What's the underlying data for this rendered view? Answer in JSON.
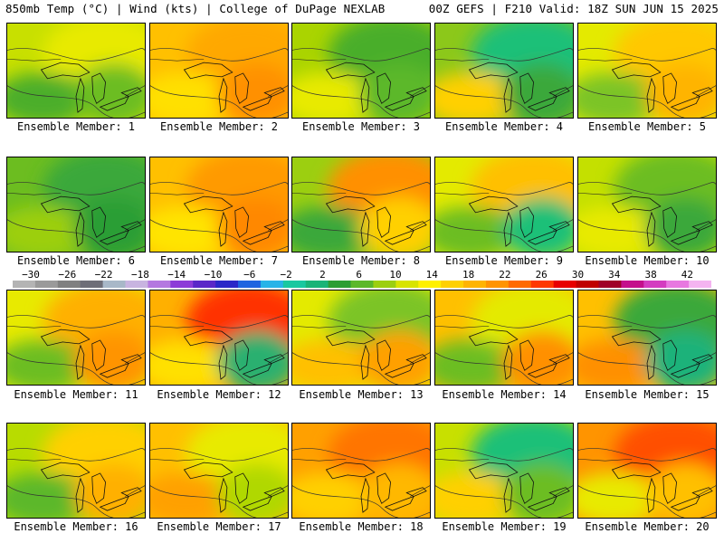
{
  "header": {
    "left": "850mb Temp (°C) | Wind (kts) | College of DuPage NEXLAB",
    "right": "00Z GEFS | F210 Valid: 18Z SUN JUN 15 2025"
  },
  "members": [
    {
      "label": "Ensemble Member: 1",
      "base": "#c8e000",
      "blobs": [
        "#e8ea00",
        "#4cae2a",
        "#6cbd20"
      ]
    },
    {
      "label": "Ensemble Member: 2",
      "base": "#ffc000",
      "blobs": [
        "#ffa800",
        "#ffe000",
        "#ff9000"
      ]
    },
    {
      "label": "Ensemble Member: 3",
      "base": "#aad400",
      "blobs": [
        "#4aae2a",
        "#e8ea00",
        "#5cb82a"
      ]
    },
    {
      "label": "Ensemble Member: 4",
      "base": "#8cc81a",
      "blobs": [
        "#1ac078",
        "#ffd000",
        "#3aa83a"
      ]
    },
    {
      "label": "Ensemble Member: 5",
      "base": "#e4ea00",
      "blobs": [
        "#ffc800",
        "#7cc426",
        "#ffb400"
      ]
    },
    {
      "label": "Ensemble Member: 6",
      "base": "#6cbd20",
      "blobs": [
        "#3aa83a",
        "#9ccf10",
        "#2c9e34"
      ]
    },
    {
      "label": "Ensemble Member: 7",
      "base": "#ffc000",
      "blobs": [
        "#ff9a00",
        "#ffe400",
        "#ff8800"
      ]
    },
    {
      "label": "Ensemble Member: 8",
      "base": "#9ccf10",
      "blobs": [
        "#ff9000",
        "#3aa83a",
        "#ffd000"
      ]
    },
    {
      "label": "Ensemble Member: 9",
      "base": "#e4ea00",
      "blobs": [
        "#ffc000",
        "#6cbd20",
        "#1ac078"
      ]
    },
    {
      "label": "Ensemble Member: 10",
      "base": "#c4e000",
      "blobs": [
        "#6cbd20",
        "#e8ea00",
        "#3aa83a"
      ]
    },
    {
      "label": "Ensemble Member: 11",
      "base": "#e8ea00",
      "blobs": [
        "#ffb000",
        "#6cbd20",
        "#ff9400"
      ]
    },
    {
      "label": "Ensemble Member: 12",
      "base": "#ffb000",
      "blobs": [
        "#ff3000",
        "#ffe000",
        "#2cb070"
      ]
    },
    {
      "label": "Ensemble Member: 13",
      "base": "#e4ea00",
      "blobs": [
        "#7cc426",
        "#ffc000",
        "#ffa000"
      ]
    },
    {
      "label": "Ensemble Member: 14",
      "base": "#ffc000",
      "blobs": [
        "#e4ea00",
        "#6cbd20",
        "#ff9000"
      ]
    },
    {
      "label": "Ensemble Member: 15",
      "base": "#ffc000",
      "blobs": [
        "#3aa83a",
        "#ff9000",
        "#1ab27a"
      ]
    },
    {
      "label": "Ensemble Member: 16",
      "base": "#b8dc00",
      "blobs": [
        "#ffd000",
        "#5cb82a",
        "#ffb000"
      ]
    },
    {
      "label": "Ensemble Member: 17",
      "base": "#ffc000",
      "blobs": [
        "#e8ea00",
        "#ffa000",
        "#b0d800"
      ]
    },
    {
      "label": "Ensemble Member: 18",
      "base": "#ffa000",
      "blobs": [
        "#ff7400",
        "#ffd000",
        "#ffb800"
      ]
    },
    {
      "label": "Ensemble Member: 19",
      "base": "#c8e000",
      "blobs": [
        "#1ac078",
        "#ffd000",
        "#6cbd20"
      ]
    },
    {
      "label": "Ensemble Member: 20",
      "base": "#ff9400",
      "blobs": [
        "#ff5000",
        "#e8ea00",
        "#ffc000"
      ]
    }
  ],
  "colorbar": {
    "ticks": [
      "−30",
      "−26",
      "−22",
      "−18",
      "−14",
      "−10",
      "−6",
      "−2",
      "2",
      "6",
      "10",
      "14",
      "18",
      "22",
      "26",
      "30",
      "34",
      "38",
      "42"
    ],
    "colors": [
      "#b4b4b4",
      "#9a9a9a",
      "#808080",
      "#6e6e78",
      "#a8b8c8",
      "#c8b4e0",
      "#b478e0",
      "#8c3cd8",
      "#5a28c8",
      "#2a28c8",
      "#1e64e0",
      "#28b4e8",
      "#1ac8a0",
      "#1ab478",
      "#2c9e34",
      "#5cb82a",
      "#9ccf10",
      "#d8e400",
      "#fff000",
      "#ffd000",
      "#ffb400",
      "#ff9400",
      "#ff6a00",
      "#ff3800",
      "#e80000",
      "#c00000",
      "#a00028",
      "#c4108c",
      "#d43cc0",
      "#e878e0",
      "#f4b4f0"
    ]
  }
}
